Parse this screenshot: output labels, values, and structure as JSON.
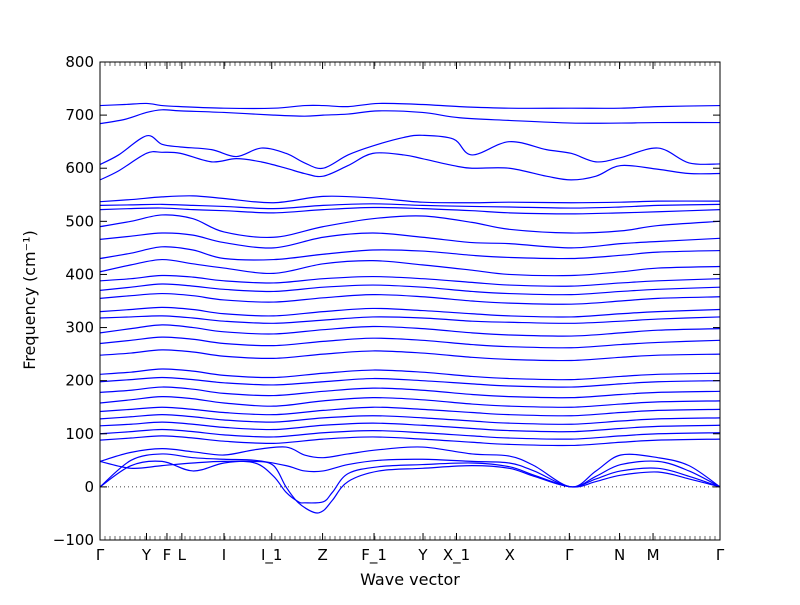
{
  "chart_data": {
    "type": "line",
    "xlabel": "Wave vector",
    "ylabel": "Frequency (cm⁻¹)",
    "ylim": [
      -100,
      800
    ],
    "yticks": [
      -100,
      0,
      100,
      200,
      300,
      400,
      500,
      600,
      700,
      800
    ],
    "xticks": [
      "Γ",
      "Y",
      "F",
      "L",
      "I",
      "I_1",
      "Z",
      "F_1",
      "Y",
      "X_1",
      "X",
      "Γ",
      "N",
      "M",
      "Γ"
    ],
    "xtick_positions": [
      0.0,
      0.075,
      0.108,
      0.132,
      0.2,
      0.277,
      0.359,
      0.442,
      0.521,
      0.575,
      0.661,
      0.757,
      0.838,
      0.892,
      1.0
    ],
    "x_range": [
      0,
      1
    ],
    "grid": false,
    "zero_line": {
      "y": 0,
      "style": "dotted"
    },
    "line_color": "#0000ff",
    "series": [
      {
        "x": [
          0,
          0.04,
          0.075,
          0.1,
          0.13,
          0.2,
          0.28,
          0.33,
          0.36,
          0.4,
          0.45,
          0.52,
          0.58,
          0.66,
          0.76,
          0.84,
          0.9,
          1.0
        ],
        "values": [
          718,
          720,
          722,
          718,
          716,
          713,
          713,
          718,
          718,
          716,
          722,
          720,
          716,
          713,
          713,
          713,
          716,
          718
        ]
      },
      {
        "x": [
          0,
          0.04,
          0.075,
          0.1,
          0.13,
          0.2,
          0.28,
          0.33,
          0.36,
          0.4,
          0.45,
          0.52,
          0.58,
          0.66,
          0.76,
          0.84,
          0.9,
          1.0
        ],
        "values": [
          684,
          692,
          705,
          710,
          708,
          705,
          700,
          698,
          700,
          702,
          708,
          705,
          695,
          690,
          685,
          685,
          686,
          686
        ]
      },
      {
        "x": [
          0,
          0.03,
          0.075,
          0.1,
          0.13,
          0.18,
          0.22,
          0.26,
          0.3,
          0.33,
          0.36,
          0.4,
          0.44,
          0.49,
          0.52,
          0.57,
          0.6,
          0.66,
          0.72,
          0.76,
          0.8,
          0.84,
          0.9,
          0.95,
          1.0
        ],
        "values": [
          607,
          625,
          661,
          645,
          640,
          635,
          622,
          638,
          628,
          610,
          600,
          625,
          642,
          658,
          662,
          655,
          625,
          650,
          635,
          628,
          612,
          620,
          638,
          610,
          608
        ]
      },
      {
        "x": [
          0,
          0.03,
          0.075,
          0.1,
          0.13,
          0.18,
          0.22,
          0.26,
          0.3,
          0.33,
          0.36,
          0.4,
          0.44,
          0.49,
          0.52,
          0.57,
          0.6,
          0.66,
          0.72,
          0.76,
          0.8,
          0.84,
          0.9,
          0.95,
          1.0
        ],
        "values": [
          578,
          595,
          628,
          630,
          628,
          612,
          618,
          612,
          600,
          590,
          585,
          605,
          628,
          625,
          618,
          605,
          600,
          600,
          585,
          578,
          585,
          605,
          598,
          590,
          590
        ]
      },
      {
        "x": [
          0,
          0.05,
          0.1,
          0.15,
          0.2,
          0.28,
          0.36,
          0.44,
          0.52,
          0.6,
          0.66,
          0.76,
          0.84,
          0.9,
          1.0
        ],
        "values": [
          537,
          541,
          546,
          548,
          543,
          535,
          547,
          544,
          536,
          535,
          536,
          535,
          536,
          538,
          538
        ]
      },
      {
        "x": [
          0,
          0.05,
          0.1,
          0.15,
          0.2,
          0.28,
          0.36,
          0.44,
          0.52,
          0.6,
          0.66,
          0.76,
          0.84,
          0.9,
          1.0
        ],
        "values": [
          530,
          531,
          532,
          530,
          528,
          524,
          530,
          533,
          530,
          528,
          527,
          525,
          527,
          530,
          532
        ]
      },
      {
        "x": [
          0,
          0.05,
          0.1,
          0.15,
          0.2,
          0.28,
          0.36,
          0.44,
          0.52,
          0.6,
          0.66,
          0.76,
          0.84,
          0.9,
          1.0
        ],
        "values": [
          522,
          524,
          525,
          522,
          520,
          516,
          522,
          526,
          524,
          520,
          516,
          514,
          516,
          518,
          522
        ]
      },
      {
        "x": [
          0,
          0.05,
          0.1,
          0.15,
          0.2,
          0.28,
          0.36,
          0.44,
          0.52,
          0.6,
          0.66,
          0.76,
          0.84,
          0.9,
          1.0
        ],
        "values": [
          490,
          500,
          512,
          505,
          480,
          470,
          490,
          505,
          510,
          498,
          485,
          478,
          482,
          492,
          500
        ]
      },
      {
        "x": [
          0,
          0.05,
          0.1,
          0.15,
          0.2,
          0.28,
          0.36,
          0.44,
          0.52,
          0.6,
          0.66,
          0.76,
          0.84,
          0.9,
          1.0
        ],
        "values": [
          466,
          472,
          478,
          474,
          460,
          450,
          470,
          478,
          470,
          460,
          458,
          450,
          458,
          462,
          468
        ]
      },
      {
        "x": [
          0,
          0.05,
          0.1,
          0.15,
          0.2,
          0.28,
          0.36,
          0.44,
          0.52,
          0.6,
          0.66,
          0.76,
          0.84,
          0.9,
          1.0
        ],
        "values": [
          430,
          440,
          452,
          446,
          430,
          428,
          438,
          446,
          444,
          436,
          432,
          430,
          436,
          442,
          445
        ]
      },
      {
        "x": [
          0,
          0.05,
          0.1,
          0.15,
          0.2,
          0.28,
          0.36,
          0.44,
          0.52,
          0.6,
          0.66,
          0.76,
          0.84,
          0.9,
          1.0
        ],
        "values": [
          405,
          418,
          428,
          420,
          412,
          402,
          420,
          426,
          418,
          408,
          400,
          398,
          405,
          412,
          415
        ]
      },
      {
        "x": [
          0,
          0.05,
          0.1,
          0.15,
          0.2,
          0.28,
          0.36,
          0.44,
          0.52,
          0.6,
          0.66,
          0.76,
          0.84,
          0.9,
          1.0
        ],
        "values": [
          388,
          392,
          398,
          395,
          388,
          384,
          392,
          396,
          392,
          385,
          380,
          378,
          384,
          388,
          392
        ]
      },
      {
        "x": [
          0,
          0.05,
          0.1,
          0.15,
          0.2,
          0.28,
          0.36,
          0.44,
          0.52,
          0.6,
          0.66,
          0.76,
          0.84,
          0.9,
          1.0
        ],
        "values": [
          370,
          376,
          382,
          378,
          372,
          368,
          376,
          380,
          376,
          368,
          364,
          362,
          368,
          372,
          376
        ]
      },
      {
        "x": [
          0,
          0.05,
          0.1,
          0.15,
          0.2,
          0.28,
          0.36,
          0.44,
          0.52,
          0.6,
          0.66,
          0.76,
          0.84,
          0.9,
          1.0
        ],
        "values": [
          355,
          360,
          364,
          360,
          352,
          348,
          356,
          362,
          358,
          350,
          346,
          344,
          350,
          355,
          358
        ]
      },
      {
        "x": [
          0,
          0.05,
          0.1,
          0.15,
          0.2,
          0.28,
          0.36,
          0.44,
          0.52,
          0.6,
          0.66,
          0.76,
          0.84,
          0.9,
          1.0
        ],
        "values": [
          330,
          334,
          338,
          334,
          326,
          322,
          330,
          336,
          332,
          326,
          322,
          320,
          326,
          330,
          334
        ]
      },
      {
        "x": [
          0,
          0.05,
          0.1,
          0.15,
          0.2,
          0.28,
          0.36,
          0.44,
          0.52,
          0.6,
          0.66,
          0.76,
          0.84,
          0.9,
          1.0
        ],
        "values": [
          318,
          320,
          322,
          318,
          312,
          308,
          314,
          320,
          318,
          312,
          310,
          308,
          312,
          316,
          320
        ]
      },
      {
        "x": [
          0,
          0.05,
          0.1,
          0.15,
          0.2,
          0.28,
          0.36,
          0.44,
          0.52,
          0.6,
          0.66,
          0.76,
          0.84,
          0.9,
          1.0
        ],
        "values": [
          290,
          298,
          305,
          300,
          292,
          288,
          296,
          302,
          298,
          290,
          286,
          284,
          290,
          295,
          298
        ]
      },
      {
        "x": [
          0,
          0.05,
          0.1,
          0.15,
          0.2,
          0.28,
          0.36,
          0.44,
          0.52,
          0.6,
          0.66,
          0.76,
          0.84,
          0.9,
          1.0
        ],
        "values": [
          270,
          276,
          282,
          278,
          270,
          266,
          274,
          280,
          276,
          268,
          264,
          262,
          268,
          272,
          276
        ]
      },
      {
        "x": [
          0,
          0.05,
          0.1,
          0.15,
          0.2,
          0.28,
          0.36,
          0.44,
          0.52,
          0.6,
          0.66,
          0.76,
          0.84,
          0.9,
          1.0
        ],
        "values": [
          248,
          252,
          258,
          254,
          246,
          242,
          250,
          256,
          252,
          244,
          240,
          238,
          244,
          248,
          250
        ]
      },
      {
        "x": [
          0,
          0.05,
          0.1,
          0.15,
          0.2,
          0.28,
          0.36,
          0.44,
          0.52,
          0.6,
          0.66,
          0.76,
          0.84,
          0.9,
          1.0
        ],
        "values": [
          212,
          216,
          222,
          218,
          210,
          206,
          214,
          220,
          216,
          208,
          204,
          202,
          208,
          212,
          214
        ]
      },
      {
        "x": [
          0,
          0.05,
          0.1,
          0.15,
          0.2,
          0.28,
          0.36,
          0.44,
          0.52,
          0.6,
          0.66,
          0.76,
          0.84,
          0.9,
          1.0
        ],
        "values": [
          198,
          202,
          206,
          202,
          196,
          192,
          198,
          204,
          200,
          194,
          190,
          188,
          194,
          198,
          200
        ]
      },
      {
        "x": [
          0,
          0.05,
          0.1,
          0.15,
          0.2,
          0.28,
          0.36,
          0.44,
          0.52,
          0.6,
          0.66,
          0.76,
          0.84,
          0.9,
          1.0
        ],
        "values": [
          178,
          182,
          188,
          184,
          176,
          172,
          180,
          186,
          182,
          174,
          170,
          168,
          174,
          178,
          180
        ]
      },
      {
        "x": [
          0,
          0.05,
          0.1,
          0.15,
          0.2,
          0.28,
          0.36,
          0.44,
          0.52,
          0.6,
          0.66,
          0.76,
          0.84,
          0.9,
          1.0
        ],
        "values": [
          158,
          164,
          170,
          166,
          158,
          152,
          162,
          168,
          164,
          156,
          152,
          150,
          156,
          160,
          162
        ]
      },
      {
        "x": [
          0,
          0.05,
          0.1,
          0.15,
          0.2,
          0.28,
          0.36,
          0.44,
          0.52,
          0.6,
          0.66,
          0.76,
          0.84,
          0.9,
          1.0
        ],
        "values": [
          142,
          146,
          150,
          146,
          140,
          136,
          144,
          150,
          146,
          140,
          136,
          134,
          140,
          144,
          146
        ]
      },
      {
        "x": [
          0,
          0.05,
          0.1,
          0.15,
          0.2,
          0.28,
          0.36,
          0.44,
          0.52,
          0.6,
          0.66,
          0.76,
          0.84,
          0.9,
          1.0
        ],
        "values": [
          128,
          132,
          136,
          132,
          126,
          122,
          130,
          134,
          130,
          124,
          120,
          118,
          124,
          128,
          130
        ]
      },
      {
        "x": [
          0,
          0.05,
          0.1,
          0.15,
          0.2,
          0.28,
          0.36,
          0.44,
          0.52,
          0.6,
          0.66,
          0.76,
          0.84,
          0.9,
          1.0
        ],
        "values": [
          115,
          118,
          122,
          118,
          112,
          108,
          116,
          120,
          116,
          110,
          106,
          104,
          110,
          114,
          116
        ]
      },
      {
        "x": [
          0,
          0.05,
          0.1,
          0.15,
          0.2,
          0.28,
          0.36,
          0.44,
          0.52,
          0.6,
          0.66,
          0.76,
          0.84,
          0.9,
          1.0
        ],
        "values": [
          100,
          104,
          108,
          104,
          98,
          94,
          102,
          106,
          102,
          96,
          92,
          90,
          96,
          100,
          102
        ]
      },
      {
        "x": [
          0,
          0.05,
          0.1,
          0.15,
          0.2,
          0.28,
          0.36,
          0.44,
          0.52,
          0.6,
          0.66,
          0.76,
          0.84,
          0.9,
          1.0
        ],
        "values": [
          88,
          92,
          96,
          92,
          86,
          82,
          90,
          94,
          90,
          84,
          80,
          78,
          84,
          88,
          90
        ]
      },
      {
        "x": [
          0,
          0.05,
          0.1,
          0.15,
          0.2,
          0.25,
          0.3,
          0.33,
          0.36,
          0.4,
          0.45,
          0.52,
          0.6,
          0.66,
          0.7,
          0.76,
          0.8,
          0.84,
          0.9,
          0.95,
          1.0
        ],
        "values": [
          48,
          65,
          72,
          66,
          60,
          70,
          75,
          60,
          55,
          62,
          70,
          75,
          62,
          58,
          40,
          0,
          30,
          60,
          55,
          40,
          0
        ]
      },
      {
        "x": [
          0,
          0.05,
          0.1,
          0.15,
          0.2,
          0.25,
          0.3,
          0.33,
          0.36,
          0.4,
          0.45,
          0.52,
          0.6,
          0.66,
          0.7,
          0.76,
          0.8,
          0.84,
          0.9,
          0.95,
          1.0
        ],
        "values": [
          0,
          50,
          62,
          55,
          52,
          50,
          40,
          30,
          30,
          42,
          50,
          52,
          48,
          45,
          30,
          0,
          20,
          42,
          48,
          30,
          0
        ]
      },
      {
        "x": [
          0,
          0.05,
          0.1,
          0.15,
          0.2,
          0.25,
          0.28,
          0.3,
          0.32,
          0.345,
          0.36,
          0.375,
          0.4,
          0.45,
          0.52,
          0.6,
          0.66,
          0.7,
          0.76,
          0.8,
          0.84,
          0.9,
          0.95,
          1.0
        ],
        "values": [
          0,
          40,
          48,
          30,
          45,
          48,
          40,
          0,
          -30,
          -48,
          -45,
          -25,
          10,
          30,
          35,
          40,
          35,
          20,
          0,
          15,
          30,
          35,
          20,
          0
        ]
      },
      {
        "x": [
          0,
          0.05,
          0.1,
          0.15,
          0.2,
          0.25,
          0.28,
          0.3,
          0.32,
          0.33,
          0.36,
          0.375,
          0.4,
          0.45,
          0.52,
          0.6,
          0.66,
          0.7,
          0.76,
          0.8,
          0.84,
          0.9,
          0.95,
          1.0
        ],
        "values": [
          48,
          35,
          40,
          45,
          48,
          45,
          20,
          -10,
          -28,
          -30,
          -28,
          -10,
          25,
          38,
          42,
          45,
          38,
          22,
          0,
          10,
          22,
          28,
          15,
          0
        ]
      }
    ]
  }
}
